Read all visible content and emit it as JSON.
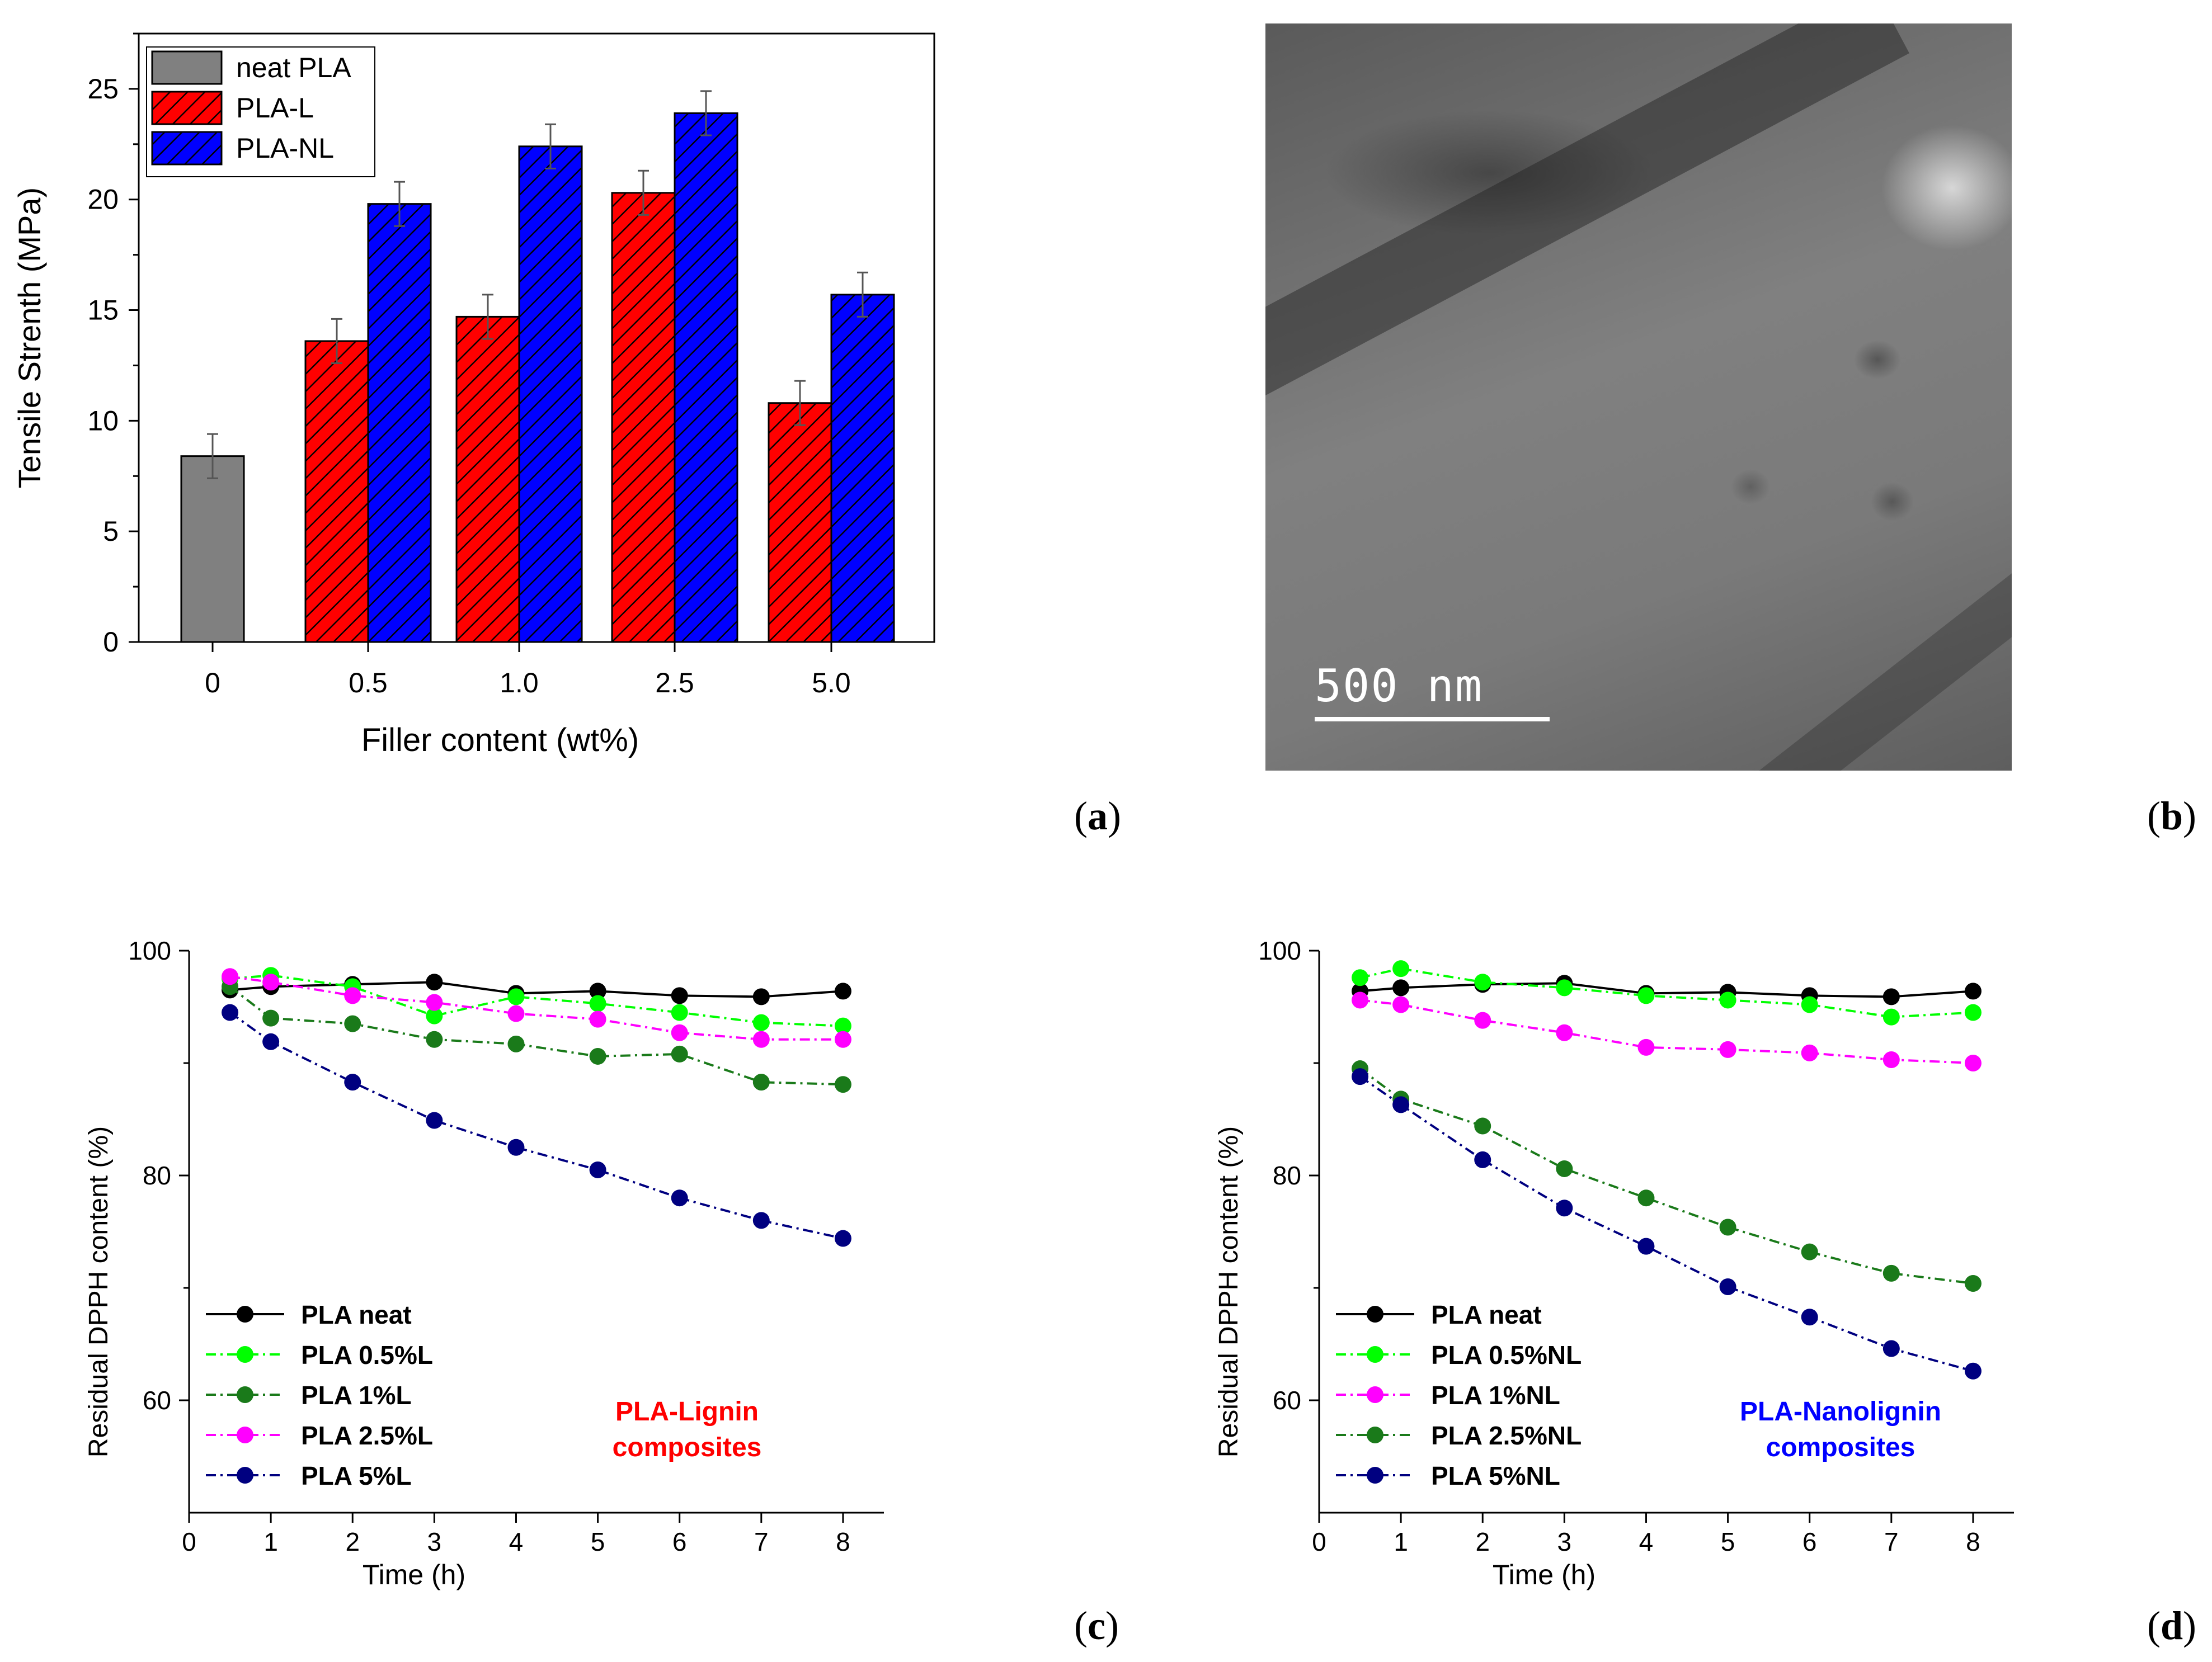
{
  "panels": {
    "a": "a",
    "b": "b",
    "c": "c",
    "d": "d"
  },
  "tem_image": {
    "scale_bar_label": "500 nm"
  },
  "chart_data": [
    {
      "id": "a",
      "type": "bar",
      "ylabel": "Tensile Strenth (MPa)",
      "xlabel": "Filler content (wt%)",
      "categories": [
        "0",
        "0.5",
        "1.0",
        "2.5",
        "5.0"
      ],
      "ylim": [
        0,
        27.5
      ],
      "yticks": [
        0,
        5,
        10,
        15,
        20,
        25
      ],
      "legend_position": "top-left",
      "series": [
        {
          "name": "neat PLA",
          "color": "#808080",
          "values": [
            8.4,
            null,
            null,
            null,
            null
          ],
          "errors": [
            1.0,
            null,
            null,
            null,
            null
          ]
        },
        {
          "name": "PLA-L",
          "color": "#ff0000",
          "values": [
            null,
            13.6,
            14.7,
            20.3,
            10.8
          ],
          "errors": [
            null,
            1.0,
            1.0,
            1.0,
            1.0
          ]
        },
        {
          "name": "PLA-NL",
          "color": "#0000ff",
          "values": [
            null,
            19.8,
            22.4,
            23.9,
            15.7
          ],
          "errors": [
            null,
            1.0,
            1.0,
            1.0,
            1.0
          ]
        }
      ]
    },
    {
      "id": "c",
      "type": "line",
      "ylabel": "Residual DPPH content (%)",
      "xlabel": "Time (h)",
      "xlim": [
        0,
        8.5
      ],
      "ylim": [
        50,
        100
      ],
      "xticks": [
        0,
        1,
        2,
        3,
        4,
        5,
        6,
        7,
        8
      ],
      "yticks": [
        60,
        80,
        100
      ],
      "x": [
        0.5,
        1,
        2,
        3,
        4,
        5,
        6,
        7,
        8
      ],
      "annotation": [
        "PLA-Lignin",
        "composites"
      ],
      "annotation_color": "#ff0000",
      "legend_position": "bottom-left",
      "series": [
        {
          "name": "PLA neat",
          "color": "#000000",
          "dash": "solid",
          "values": [
            96.5,
            96.8,
            97.0,
            97.2,
            96.2,
            96.4,
            96.0,
            95.9,
            96.4
          ]
        },
        {
          "name": "PLA 0.5%L",
          "color": "#00ff00",
          "dash": "dashdot",
          "values": [
            97.5,
            97.8,
            96.8,
            94.2,
            95.9,
            95.3,
            94.5,
            93.6,
            93.3
          ]
        },
        {
          "name": "PLA 1%L",
          "color": "#1a7a1a",
          "dash": "dashdot",
          "values": [
            96.8,
            94.0,
            93.5,
            92.1,
            91.7,
            90.6,
            90.8,
            88.3,
            88.1
          ]
        },
        {
          "name": "PLA 2.5%L",
          "color": "#ff00ff",
          "dash": "dashdot",
          "values": [
            97.7,
            97.2,
            96.0,
            95.4,
            94.4,
            93.9,
            92.7,
            92.1,
            92.1
          ]
        },
        {
          "name": "PLA 5%L",
          "color": "#000080",
          "dash": "dashdot",
          "values": [
            94.5,
            91.9,
            88.3,
            84.9,
            82.5,
            80.5,
            78.0,
            76.0,
            74.4
          ]
        }
      ]
    },
    {
      "id": "d",
      "type": "line",
      "ylabel": "Residual DPPH content (%)",
      "xlabel": "Time (h)",
      "xlim": [
        0,
        8.5
      ],
      "ylim": [
        50,
        100
      ],
      "xticks": [
        0,
        1,
        2,
        3,
        4,
        5,
        6,
        7,
        8
      ],
      "yticks": [
        60,
        80,
        100
      ],
      "x": [
        0.5,
        1,
        2,
        3,
        4,
        5,
        6,
        7,
        8
      ],
      "annotation": [
        "PLA-Nanolignin",
        "composites"
      ],
      "annotation_color": "#0000ff",
      "legend_position": "bottom-left",
      "series": [
        {
          "name": "PLA neat",
          "color": "#000000",
          "dash": "solid",
          "values": [
            96.4,
            96.7,
            97.0,
            97.1,
            96.2,
            96.3,
            96.0,
            95.9,
            96.4
          ]
        },
        {
          "name": "PLA 0.5%NL",
          "color": "#00ff00",
          "dash": "dashdot",
          "values": [
            97.6,
            98.4,
            97.2,
            96.7,
            96.0,
            95.6,
            95.2,
            94.1,
            94.5
          ]
        },
        {
          "name": "PLA 1%NL",
          "color": "#ff00ff",
          "dash": "dashdot",
          "values": [
            95.6,
            95.2,
            93.8,
            92.7,
            91.4,
            91.2,
            90.9,
            90.3,
            90.0
          ]
        },
        {
          "name": "PLA 2.5%NL",
          "color": "#1a7a1a",
          "dash": "dashdot",
          "values": [
            89.5,
            86.8,
            84.4,
            80.6,
            78.0,
            75.4,
            73.2,
            71.3,
            70.4
          ]
        },
        {
          "name": "PLA 5%NL",
          "color": "#000080",
          "dash": "dashdot",
          "values": [
            88.8,
            86.3,
            81.4,
            77.1,
            73.7,
            70.1,
            67.4,
            64.6,
            62.6
          ]
        }
      ]
    }
  ]
}
